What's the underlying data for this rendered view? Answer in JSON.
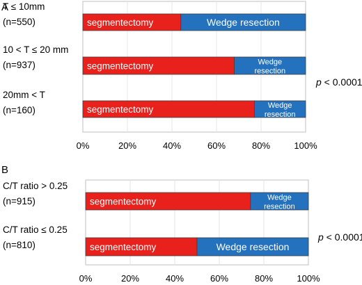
{
  "chart_data": [
    {
      "type": "bar",
      "panel_label": "A",
      "orientation": "horizontal",
      "stacked": "percent",
      "categories": [
        {
          "name": "T ≤ 10mm",
          "n": "(n=550)"
        },
        {
          "name": "10 < T ≤ 20 mm",
          "n": "(n=937)"
        },
        {
          "name": "20mm < T",
          "n": "(n=160)"
        }
      ],
      "series": [
        {
          "name": "segmentectomy",
          "color": "#e8211c",
          "values": [
            44,
            68,
            77
          ],
          "labels": [
            "segmentectomy",
            "segmentectomy",
            "segmentectomy"
          ]
        },
        {
          "name": "Wedge resection",
          "color": "#2471bd",
          "values": [
            56,
            32,
            23
          ],
          "labels": [
            "Wedge resection",
            "Wedge|resection",
            "Wedge|resection"
          ]
        }
      ],
      "xlim": [
        0,
        100
      ],
      "xticks": [
        "0%",
        "20%",
        "40%",
        "60%",
        "80%",
        "100%"
      ],
      "grid": "vertical",
      "annotation": {
        "prefix": "p",
        "text": " < 0.0001"
      }
    },
    {
      "type": "bar",
      "panel_label": "B",
      "orientation": "horizontal",
      "stacked": "percent",
      "categories": [
        {
          "name": "C/T ratio > 0.25",
          "n": "(n=915)"
        },
        {
          "name": "C/T ratio ≤ 0.25",
          "n": "(n=810)"
        }
      ],
      "series": [
        {
          "name": "segmentectomy",
          "color": "#e8211c",
          "values": [
            74,
            50
          ],
          "labels": [
            "segmentectomy",
            "segmentectomy"
          ]
        },
        {
          "name": "Wedge resection",
          "color": "#2471bd",
          "values": [
            26,
            50
          ],
          "labels": [
            "Wedge|resection",
            "Wedge resection"
          ]
        }
      ],
      "xlim": [
        0,
        100
      ],
      "xticks": [
        "0%",
        "20%",
        "40%",
        "60%",
        "80%",
        "100%"
      ],
      "grid": "vertical",
      "annotation": {
        "prefix": "p",
        "text": " < 0.0001"
      }
    }
  ]
}
